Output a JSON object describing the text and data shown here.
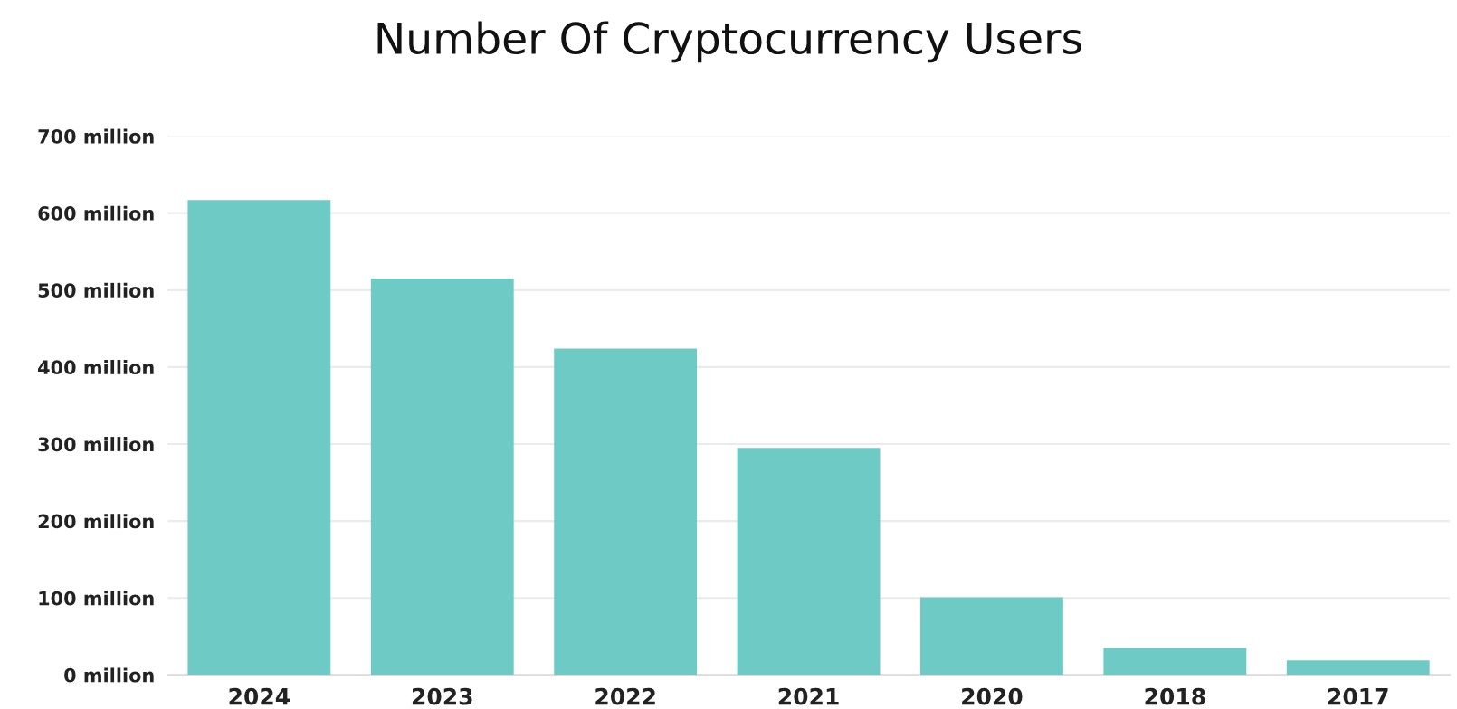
{
  "chart_data": {
    "type": "bar",
    "title": "Number Of Cryptocurrency Users",
    "categories": [
      "2024",
      "2023",
      "2022",
      "2021",
      "2020",
      "2018",
      "2017"
    ],
    "values": [
      617,
      515,
      424,
      295,
      101,
      35,
      19
    ],
    "color": "#6ecac5",
    "ylim": [
      0,
      700
    ],
    "yticks": [
      {
        "value": 0,
        "label": "0 million"
      },
      {
        "value": 100,
        "label": "100 million"
      },
      {
        "value": 200,
        "label": "200 million"
      },
      {
        "value": 300,
        "label": "300 million"
      },
      {
        "value": 400,
        "label": "400 million"
      },
      {
        "value": 500,
        "label": "500 million"
      },
      {
        "value": 600,
        "label": "600 million"
      },
      {
        "value": 700,
        "label": "700 million"
      }
    ],
    "grid": "y",
    "legend": false
  }
}
